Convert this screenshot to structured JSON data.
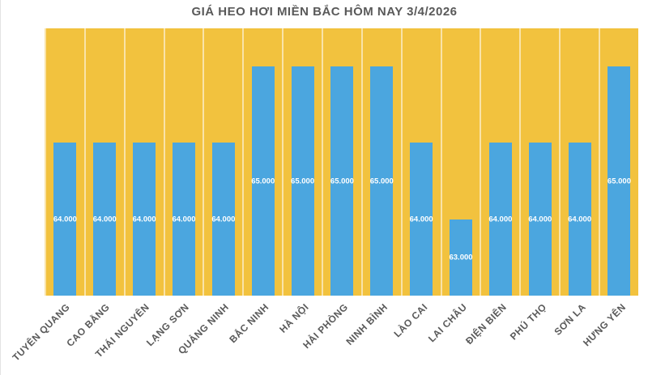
{
  "title": "GIÁ HEO HƠI MIỀN BẮC HÔM NAY 3/4/2026",
  "chart_data": {
    "type": "bar",
    "title": "GIÁ HEO HƠI MIỀN BẮC HÔM NAY 3/4/2026",
    "categories": [
      "TUYÊN QUANG",
      "CAO BẰNG",
      "THÁI NGUYÊN",
      "LẠNG SƠN",
      "QUẢNG NINH",
      "BẮC NINH",
      "HÀ NỘI",
      "HẢI PHÒNG",
      "NINH BÌNH",
      "LÀO CAI",
      "LAI CHÂU",
      "ĐIỆN BIÊN",
      "PHÚ THỌ",
      "SƠN LA",
      "HƯNG YÊN"
    ],
    "values": [
      64000,
      64000,
      64000,
      64000,
      64000,
      65000,
      65000,
      65000,
      65000,
      64000,
      63000,
      64000,
      64000,
      64000,
      65000
    ],
    "value_labels": [
      "64.000",
      "64.000",
      "64.000",
      "64.000",
      "64.000",
      "65.000",
      "65.000",
      "65.000",
      "65.000",
      "64.000",
      "63.000",
      "64.000",
      "64.000",
      "64.000",
      "65.000"
    ],
    "xlabel": "",
    "ylabel": "",
    "ylim": [
      62000,
      65500
    ],
    "legend": "none",
    "grid": "vertical-column-separators",
    "unit": "VND/kg",
    "colors": {
      "plot_background": "#F2C23E",
      "bar": "#4BA6DF",
      "value_label": "#FFFFFF",
      "axis_text": "#595959",
      "title_text": "#595959",
      "separator": "rgba(255,255,255,0.55)"
    }
  }
}
